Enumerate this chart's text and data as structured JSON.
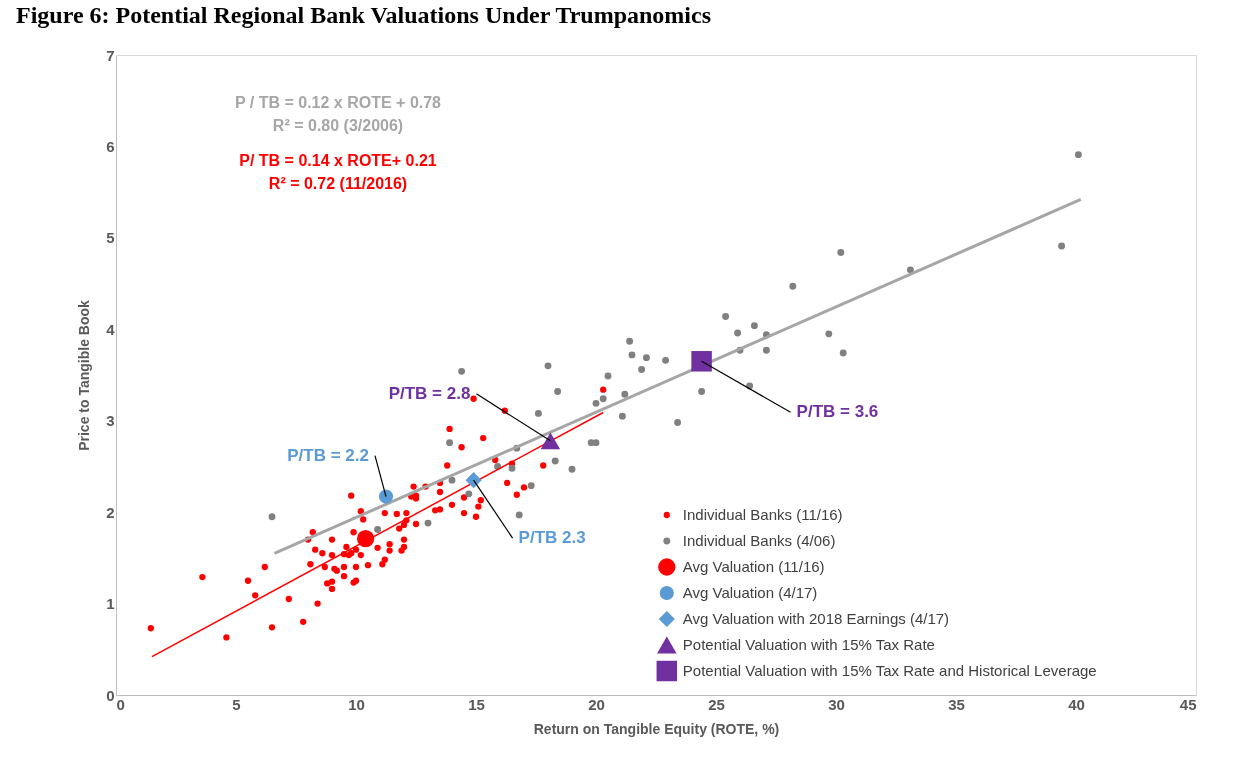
{
  "chart_data": {
    "type": "scatter",
    "title": "Figure 6: Potential Regional Bank Valuations Under Trumpanomics",
    "xlabel": "Return on Tangible Equity (ROTE, %)",
    "ylabel": "Price to Tangible Book",
    "xlim": [
      0,
      45
    ],
    "xticks": [
      0,
      5,
      10,
      15,
      20,
      25,
      30,
      35,
      40,
      45
    ],
    "ylim": [
      0,
      7
    ],
    "yticks": [
      0,
      1,
      2,
      3,
      4,
      5,
      6,
      7
    ],
    "grid": false,
    "legend": "bottom right",
    "series": [
      {
        "name": "Individual  Banks (11/16)",
        "color": "#ff0000",
        "marker": "circle",
        "x": [
          1.45,
          3.6,
          4.6,
          5.5,
          5.8,
          6.2,
          6.5,
          7.2,
          7.8,
          8.1,
          8.2,
          8.0,
          8.4,
          8.3,
          8.6,
          8.7,
          9.0,
          9.0,
          9.1,
          9.2,
          8.8,
          9.0,
          9.0,
          9.5,
          9.5,
          9.5,
          9.6,
          9.7,
          9.8,
          9.9,
          9.8,
          10.0,
          9.9,
          10.0,
          10.2,
          10.3,
          10.2,
          10.0,
          10.9,
          11.2,
          11.4,
          11.4,
          11.1,
          11.2,
          10.5,
          11.7,
          12.1,
          12.0,
          12.0,
          11.9,
          11.8,
          12.0,
          12.1,
          12.5,
          12.4,
          12.5,
          12.5,
          12.3,
          12.9,
          13.3,
          13.5,
          13.5,
          13.5,
          14.0,
          14.5,
          14.5,
          13.8,
          13.9,
          14.4,
          15.0,
          15.1,
          15.2,
          15.3,
          14.9,
          16.2,
          15.8,
          16.3,
          16.5,
          16.7,
          17.0,
          17.8,
          20.3
        ],
        "values": [
          0.73,
          1.29,
          0.63,
          1.25,
          1.09,
          1.4,
          0.74,
          1.05,
          0.8,
          1.43,
          1.78,
          1.7,
          1.0,
          1.59,
          1.55,
          1.4,
          1.53,
          1.7,
          1.38,
          1.36,
          1.22,
          1.24,
          1.16,
          1.4,
          1.3,
          1.54,
          1.62,
          1.53,
          1.55,
          1.78,
          2.18,
          1.4,
          1.23,
          1.25,
          2.01,
          1.92,
          1.53,
          1.59,
          1.61,
          1.99,
          1.65,
          1.58,
          1.43,
          1.48,
          1.42,
          1.98,
          1.99,
          1.7,
          1.62,
          1.58,
          1.82,
          1.86,
          1.91,
          1.87,
          2.28,
          2.18,
          2.15,
          2.17,
          2.28,
          2.02,
          2.03,
          2.22,
          2.32,
          2.08,
          1.99,
          2.16,
          2.51,
          2.91,
          2.71,
          1.95,
          2.06,
          2.13,
          2.81,
          3.24,
          3.11,
          2.57,
          2.32,
          2.53,
          2.19,
          2.27,
          2.51,
          3.34
        ]
      },
      {
        "name": "Individual Banks (4/06)",
        "color": "#808080",
        "marker": "circle",
        "x": [
          6.5,
          10.9,
          14.0,
          13.9,
          13.0,
          14.7,
          15.9,
          16.5,
          16.7,
          16.8,
          17.3,
          14.4,
          18.0,
          18.4,
          17.6,
          18.3,
          19.0,
          19.8,
          20.0,
          20.0,
          20.3,
          20.5,
          21.1,
          21.2,
          21.4,
          21.5,
          21.9,
          22.1,
          22.9,
          23.4,
          24.4,
          25.4,
          25.9,
          26.0,
          26.4,
          26.6,
          27.1,
          27.1,
          28.2,
          29.7,
          30.2,
          30.3,
          33.1,
          39.4,
          40.1
        ],
        "values": [
          1.95,
          1.81,
          2.35,
          2.76,
          1.88,
          2.2,
          2.5,
          2.48,
          2.7,
          1.97,
          2.29,
          3.54,
          3.6,
          3.32,
          3.08,
          2.56,
          2.47,
          2.76,
          2.76,
          3.19,
          3.24,
          3.49,
          3.05,
          3.29,
          3.87,
          3.72,
          3.56,
          3.69,
          3.66,
          2.98,
          3.32,
          4.14,
          3.96,
          3.77,
          3.38,
          4.04,
          3.94,
          3.77,
          4.47,
          3.95,
          4.84,
          3.74,
          4.65,
          4.91,
          5.91
        ]
      },
      {
        "name": "Avg Valuation (11/16)",
        "color": "#ff0000",
        "marker": "circle",
        "x": [
          10.4
        ],
        "values": [
          1.71
        ]
      },
      {
        "name": "Avg Valuation (4/17)",
        "color": "#5b9bd5",
        "marker": "circle",
        "x": [
          11.25
        ],
        "values": [
          2.17
        ]
      },
      {
        "name": "Avg Valuation with 2018 Earnings (4/17)",
        "color": "#5b9bd5",
        "marker": "diamond",
        "x": [
          14.9
        ],
        "values": [
          2.35
        ]
      },
      {
        "name": "Potential Valuation with 15% Tax Rate",
        "color": "#7030a0",
        "marker": "triangle",
        "x": [
          18.1
        ],
        "values": [
          2.78
        ]
      },
      {
        "name": "Potential Valuation with 15% Tax Rate and Historical Leverage",
        "color": "#7030a0",
        "marker": "square",
        "x": [
          24.4
        ],
        "values": [
          3.65
        ]
      },
      {
        "type": "line",
        "color": "#a6a6a6",
        "x": [
          6.6,
          40.2
        ],
        "values": [
          1.55,
          5.42
        ]
      },
      {
        "type": "line",
        "color": "#ff0000",
        "x": [
          1.5,
          20.3
        ],
        "values": [
          0.42,
          3.09
        ]
      }
    ],
    "annotations": [
      "P / TB = 0.12 x ROTE + 0.78",
      "R² = 0.80 (3/2006)",
      "P/ TB = 0.14 x ROTE+ 0.21",
      "R² = 0.72  (11/2016)",
      {
        "text": "P/TB = 2.2",
        "x": 11.25,
        "y": 2.17
      },
      {
        "text": "P/TB = 2.8",
        "x": 18.1,
        "y": 2.78
      },
      {
        "text": "P/TB 2.3",
        "x": 14.9,
        "y": 2.35
      },
      {
        "text": "P/TB = 3.6",
        "x": 24.4,
        "y": 3.65
      }
    ]
  }
}
